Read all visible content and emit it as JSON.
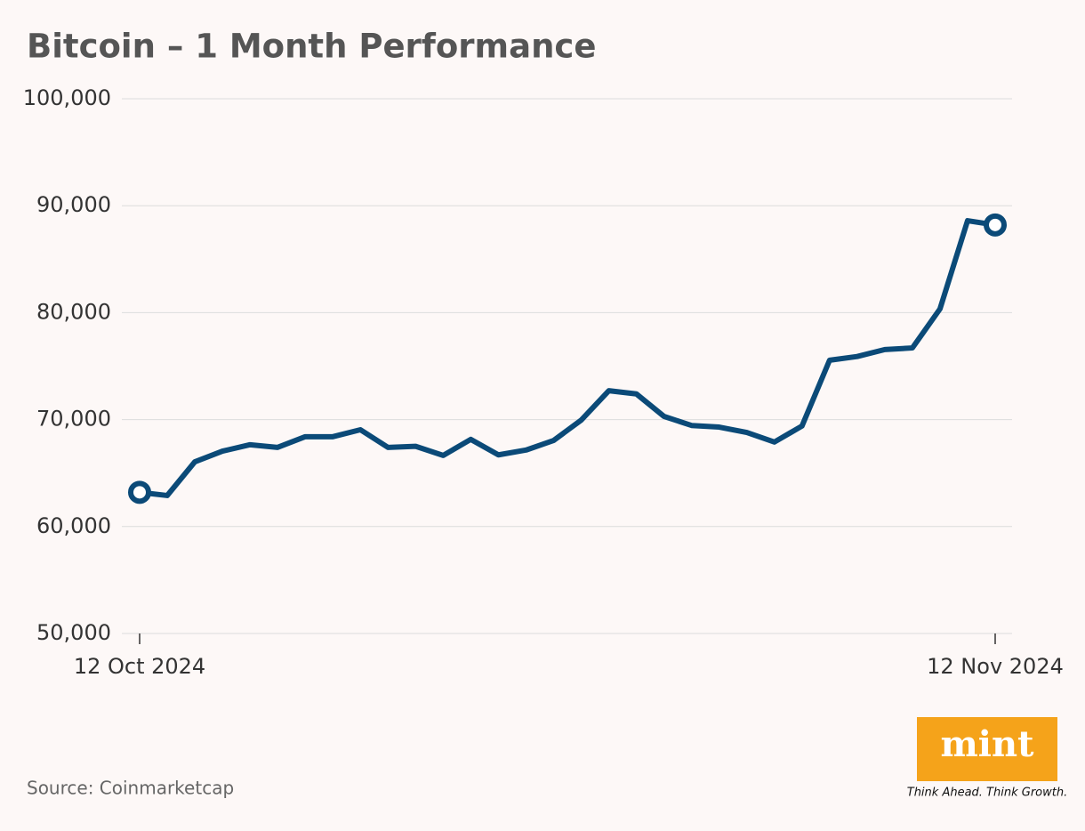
{
  "chart_data": {
    "type": "line",
    "title": "Bitcoin – 1 Month Performance",
    "categories": [
      "12 Oct 2024",
      null,
      null,
      null,
      null,
      null,
      null,
      null,
      null,
      null,
      null,
      null,
      null,
      null,
      null,
      null,
      null,
      null,
      null,
      null,
      null,
      null,
      null,
      null,
      null,
      null,
      null,
      null,
      null,
      null,
      null,
      "12 Nov 2024"
    ],
    "values": [
      63200,
      62900,
      66050,
      67050,
      67650,
      67400,
      68400,
      68400,
      69050,
      67400,
      67500,
      66650,
      68150,
      66700,
      67150,
      68050,
      69950,
      72700,
      72400,
      70300,
      69450,
      69300,
      68800,
      67900,
      69400,
      75550,
      75900,
      76550,
      76700,
      80350,
      88600,
      88200
    ],
    "color": "#0b4a78",
    "ylim": [
      50000,
      100000
    ],
    "yticks": [
      {
        "value": 50000,
        "label": "50,000"
      },
      {
        "value": 60000,
        "label": "60,000"
      },
      {
        "value": 70000,
        "label": "70,000"
      },
      {
        "value": 80000,
        "label": "80,000"
      },
      {
        "value": 90000,
        "label": "90,000"
      },
      {
        "value": 100000,
        "label": "100,000"
      }
    ],
    "grid": true,
    "endpoint_markers": true,
    "source": "Source: Coinmarketcap"
  },
  "logo": {
    "text": "mint",
    "tagline": "Think Ahead. Think Growth."
  }
}
